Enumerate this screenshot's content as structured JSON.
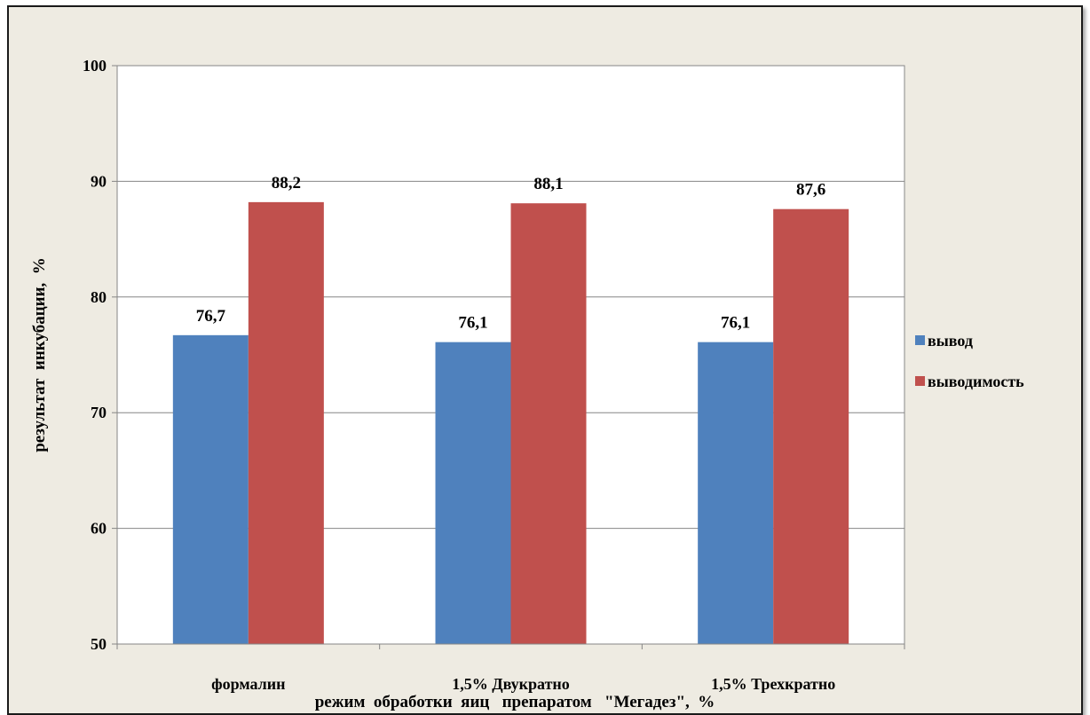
{
  "chart_data": {
    "type": "bar",
    "title": "",
    "categories": [
      "формалин",
      "1,5% Двукратно",
      "1,5% Трехкратно"
    ],
    "series": [
      {
        "name": "вывод",
        "color": "#4f81bd",
        "values": [
          76.7,
          76.1,
          76.1
        ],
        "labels": [
          "76,7",
          "76,1",
          "76,1"
        ]
      },
      {
        "name": "выводимость",
        "color": "#c0504d",
        "values": [
          88.2,
          88.1,
          87.6
        ],
        "labels": [
          "88,2",
          "88,1",
          "87,6"
        ]
      }
    ],
    "xlabel": "режим  обработки  яиц   препаратом   \"Мегадез\",  %",
    "ylabel": "результат  инкубации,  %",
    "ylim": [
      50,
      100
    ],
    "yticks": [
      50,
      60,
      70,
      80,
      90,
      100
    ],
    "grid": true,
    "legend": "right"
  }
}
